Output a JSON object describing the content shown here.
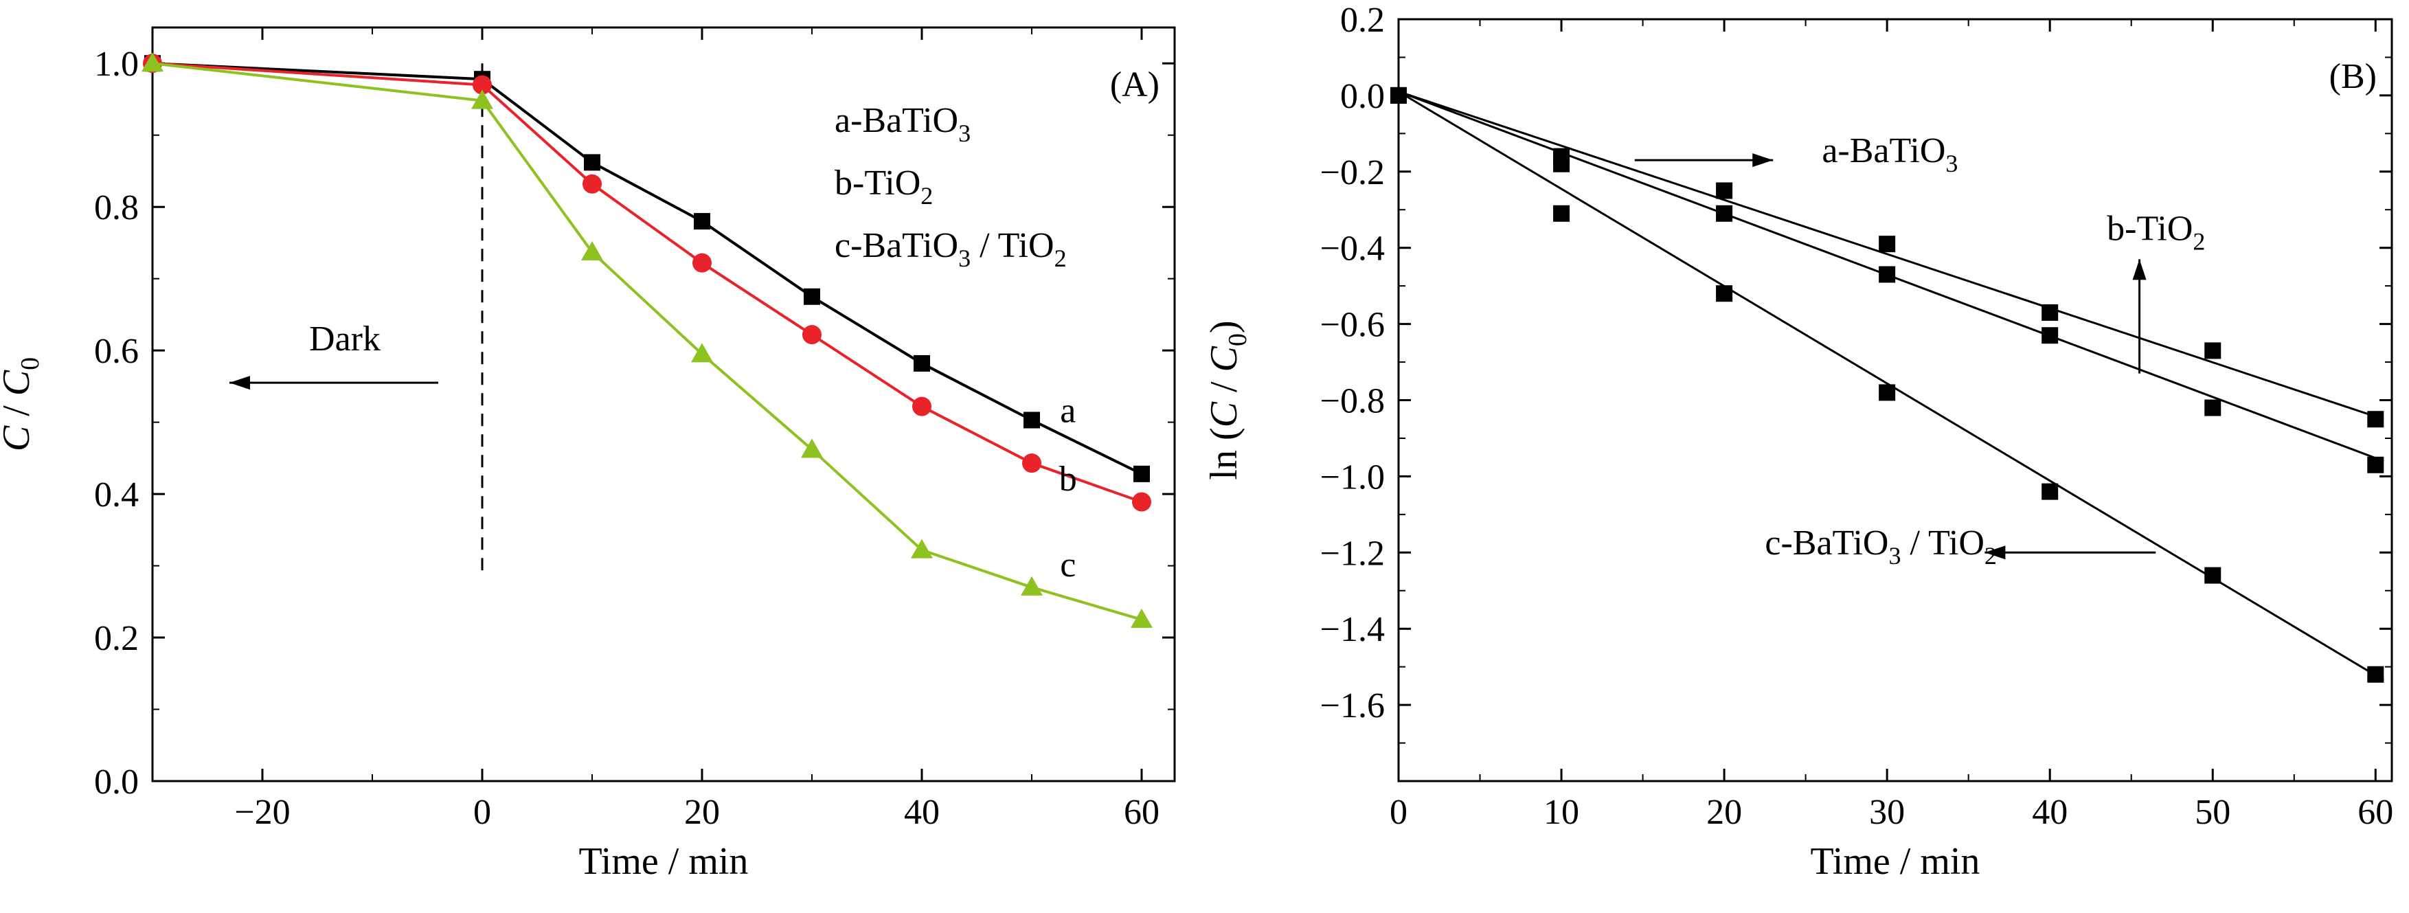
{
  "chart_data": [
    {
      "type": "line",
      "panel_label": "(A)",
      "xlabel": "Time / min",
      "ylabel": "C / C0",
      "ylabel_parts": {
        "italic_var": "C",
        "sep": " / ",
        "sub_var": "C",
        "sub": "0"
      },
      "xlim": [
        -30,
        63
      ],
      "ylim": [
        0,
        1.05
      ],
      "xticks": [
        -20,
        0,
        20,
        40,
        60
      ],
      "xtick_labels": [
        "−20",
        "0",
        "20",
        "40",
        "60"
      ],
      "yticks": [
        0.0,
        0.2,
        0.4,
        0.6,
        0.8,
        1.0
      ],
      "ytick_labels": [
        "0.0",
        "0.2",
        "0.4",
        "0.6",
        "0.8",
        "1.0"
      ],
      "grid": false,
      "legend": {
        "position": "top-right",
        "entries": [
          {
            "base": "a-BaTiO",
            "sub": "3"
          },
          {
            "base": "b-TiO",
            "sub": "2"
          },
          {
            "base": "c-BaTiO",
            "sub": "3",
            "tail": " / TiO",
            "tail_sub": "2"
          }
        ]
      },
      "annotations": {
        "dark_label": "Dark",
        "dark_line_x": 0,
        "dark_line_range": [
          0.29,
          1.0
        ],
        "dark_arrow": {
          "from": [
            -4,
            0.555
          ],
          "to": [
            -23,
            0.555
          ],
          "text_at": [
            -12.5,
            0.6
          ]
        }
      },
      "series": [
        {
          "label": "a",
          "color": "#000000",
          "marker": "square",
          "label_at": [
            53.3,
            0.5
          ],
          "x": [
            -30,
            0,
            10,
            20,
            30,
            40,
            50,
            60
          ],
          "y": [
            1.0,
            0.978,
            0.862,
            0.78,
            0.675,
            0.582,
            0.503,
            0.428
          ]
        },
        {
          "label": "b",
          "color": "#e8232a",
          "marker": "circle",
          "label_at": [
            53.3,
            0.405
          ],
          "x": [
            -30,
            0,
            10,
            20,
            30,
            40,
            50,
            60
          ],
          "y": [
            1.0,
            0.97,
            0.832,
            0.722,
            0.622,
            0.522,
            0.443,
            0.389
          ]
        },
        {
          "label": "c",
          "color": "#8dc21f",
          "marker": "triangle",
          "label_at": [
            53.3,
            0.285
          ],
          "x": [
            -30,
            0,
            10,
            20,
            30,
            40,
            50,
            60
          ],
          "y": [
            1.0,
            0.948,
            0.737,
            0.595,
            0.462,
            0.322,
            0.27,
            0.225
          ]
        }
      ]
    },
    {
      "type": "scatter",
      "panel_label": "(B)",
      "xlabel": "Time / min",
      "ylabel": "ln (C / C0)",
      "ylabel_parts": {
        "prefix": "ln (",
        "italic_var": "C",
        "sep": " / ",
        "sub_var": "C",
        "sub": "0",
        "suffix": ")"
      },
      "xlim": [
        0,
        61
      ],
      "ylim": [
        -1.8,
        0.2
      ],
      "xticks": [
        0,
        10,
        20,
        30,
        40,
        50,
        60
      ],
      "xtick_labels": [
        "0",
        "10",
        "20",
        "30",
        "40",
        "50",
        "60"
      ],
      "yticks": [
        0.2,
        0.0,
        -0.2,
        -0.4,
        -0.6,
        -0.8,
        -1.0,
        -1.2,
        -1.4,
        -1.6
      ],
      "ytick_labels": [
        "0.2",
        "0.0",
        "−0.2",
        "−0.4",
        "−0.6",
        "−0.8",
        "−1.0",
        "−1.2",
        "−1.4",
        "−1.6"
      ],
      "grid": false,
      "series": [
        {
          "name": "a-BaTiO3",
          "name_parts": {
            "base": "a-BaTiO",
            "sub": "3"
          },
          "marker": "square",
          "color": "#000000",
          "x": [
            0,
            10,
            20,
            30,
            40,
            50,
            60
          ],
          "y": [
            0.0,
            -0.16,
            -0.25,
            -0.39,
            -0.57,
            -0.67,
            -0.85
          ],
          "fit": {
            "x": [
              0,
              60.5
            ],
            "y": [
              0.01,
              -0.85
            ]
          },
          "annotation": {
            "arrow_from": [
              14.5,
              -0.17
            ],
            "arrow_to": [
              23,
              -0.17
            ],
            "text_at": [
              26,
              -0.175
            ]
          }
        },
        {
          "name": "b-TiO2",
          "name_parts": {
            "base": "b-TiO",
            "sub": "2"
          },
          "marker": "square",
          "color": "#000000",
          "x": [
            0,
            10,
            20,
            30,
            40,
            50,
            60
          ],
          "y": [
            0.0,
            -0.18,
            -0.31,
            -0.47,
            -0.63,
            -0.82,
            -0.97
          ],
          "fit": {
            "x": [
              0,
              60.5
            ],
            "y": [
              0.01,
              -0.96
            ]
          },
          "annotation": {
            "arrow_from": [
              45.5,
              -0.73
            ],
            "arrow_to": [
              45.5,
              -0.43
            ],
            "text_at": [
              43.5,
              -0.38
            ]
          }
        },
        {
          "name": "c-BaTiO3 / TiO2",
          "name_parts": {
            "base": "c-BaTiO",
            "sub": "3",
            "tail": " / TiO",
            "tail_sub": "2"
          },
          "marker": "square",
          "color": "#000000",
          "x": [
            0,
            10,
            20,
            30,
            40,
            50,
            60
          ],
          "y": [
            0.0,
            -0.31,
            -0.52,
            -0.78,
            -1.04,
            -1.26,
            -1.52
          ],
          "fit": {
            "x": [
              0,
              60.5
            ],
            "y": [
              0.01,
              -1.535
            ]
          },
          "annotation": {
            "arrow_from": [
              46.5,
              -1.2
            ],
            "arrow_to": [
              36,
              -1.2
            ],
            "text_at": [
              22.5,
              -1.205
            ]
          }
        }
      ]
    }
  ]
}
